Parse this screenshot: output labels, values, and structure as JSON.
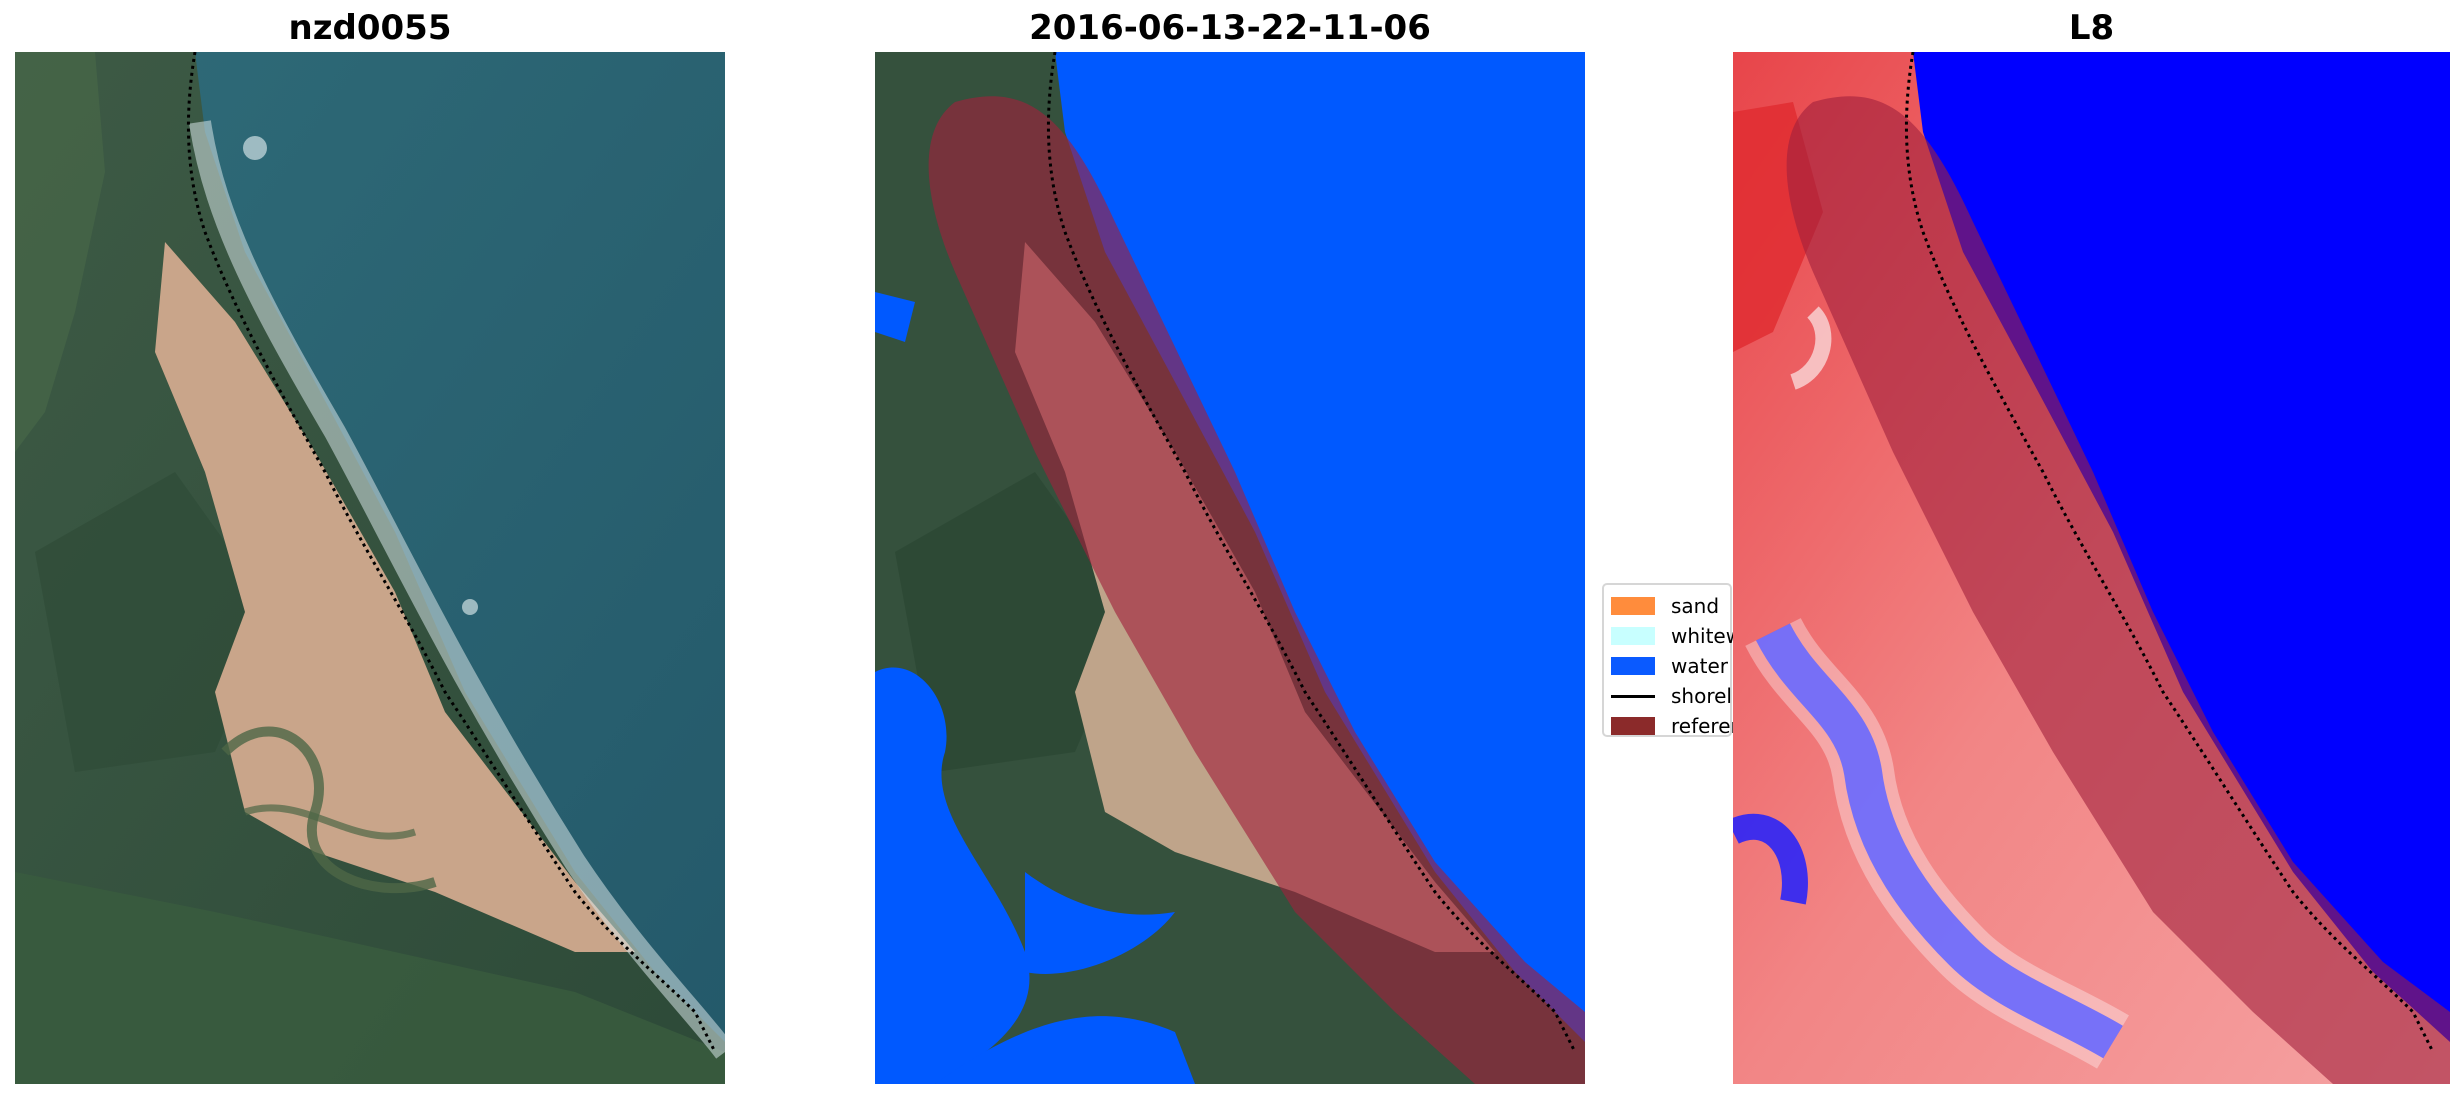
{
  "panels": [
    {
      "title": "nzd0055"
    },
    {
      "title": "2016-06-13-22-11-06"
    },
    {
      "title": "L8"
    }
  ],
  "legend": {
    "items": [
      {
        "label": "sand",
        "color": "#ff8c3c",
        "kind": "patch"
      },
      {
        "label": "whitewater",
        "color": "#c8ffff",
        "kind": "patch"
      },
      {
        "label": "water",
        "color": "#0a5aff",
        "kind": "patch"
      },
      {
        "label": "shoreline",
        "color": "#000000",
        "kind": "line"
      },
      {
        "label": "reference shoreline buffer",
        "color": "#8b2a2a",
        "kind": "patch"
      }
    ]
  },
  "colors": {
    "water_class": "#0059ff",
    "buffer_overlay": "#a0203c",
    "index_low": "#0000ff",
    "index_high": "#e8202a"
  }
}
